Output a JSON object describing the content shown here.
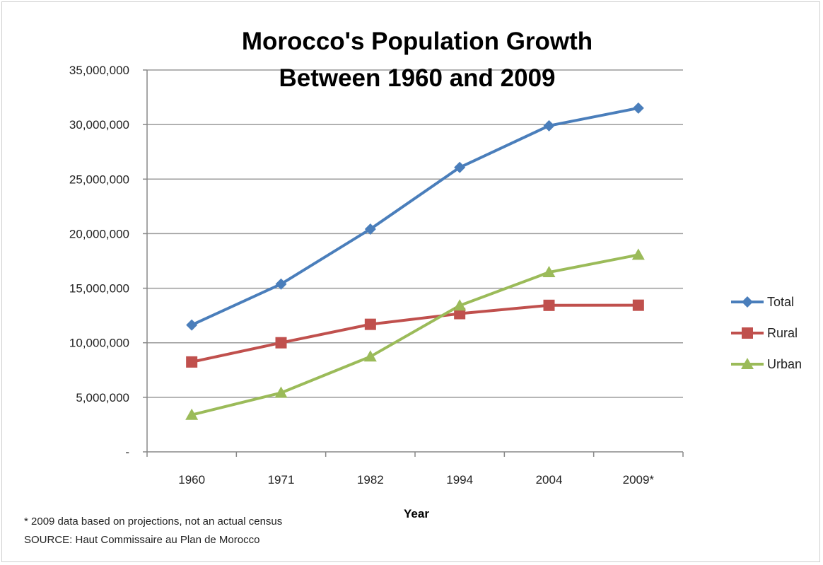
{
  "chart_data": {
    "type": "line",
    "title_lines": [
      "Morocco's Population Growth",
      "Between 1960 and 2009"
    ],
    "xlabel": "Year",
    "ylabel": "",
    "categories": [
      "1960",
      "1971",
      "1982",
      "1994",
      "2004",
      "2009*"
    ],
    "ylim": [
      0,
      35000000
    ],
    "yticks": [
      {
        "value": 0,
        "label": "-"
      },
      {
        "value": 5000000,
        "label": "5,000,000"
      },
      {
        "value": 10000000,
        "label": "10,000,000"
      },
      {
        "value": 15000000,
        "label": "15,000,000"
      },
      {
        "value": 20000000,
        "label": "20,000,000"
      },
      {
        "value": 25000000,
        "label": "25,000,000"
      },
      {
        "value": 30000000,
        "label": "30,000,000"
      },
      {
        "value": 35000000,
        "label": "35,000,000"
      }
    ],
    "grid": true,
    "legend_position": "right",
    "series": [
      {
        "name": "Total",
        "color": "#4a7ebb",
        "marker": "diamond",
        "values": [
          11630000,
          15380000,
          20420000,
          26070000,
          29890000,
          31510000
        ]
      },
      {
        "name": "Rural",
        "color": "#c0504d",
        "marker": "square",
        "values": [
          8240000,
          10000000,
          11690000,
          12670000,
          13430000,
          13440000
        ]
      },
      {
        "name": "Urban",
        "color": "#9bbb59",
        "marker": "triangle",
        "values": [
          3390000,
          5410000,
          8730000,
          13410000,
          16460000,
          18060000
        ]
      }
    ]
  },
  "notes": {
    "line1": "* 2009 data based on projections, not an actual census",
    "line2": "SOURCE:  Haut Commissaire au Plan de Morocco"
  }
}
